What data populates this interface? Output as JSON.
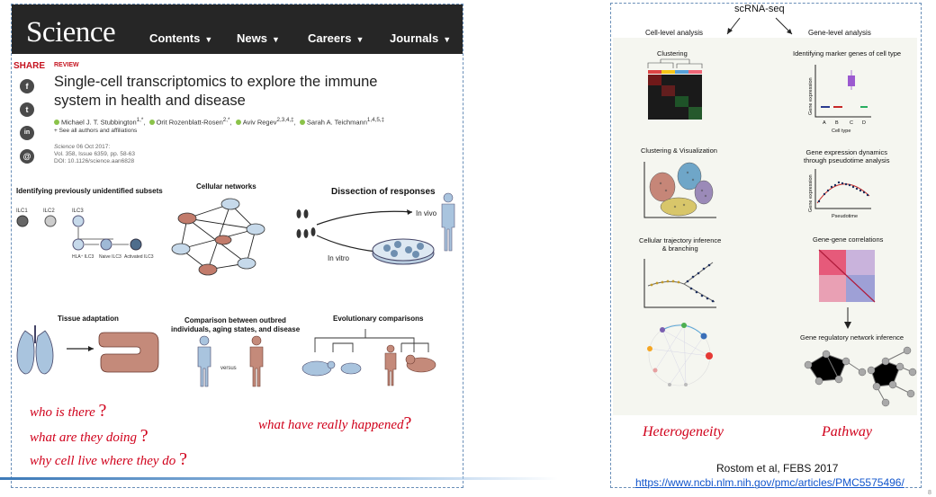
{
  "left": {
    "logo": "Science",
    "nav": [
      "Contents",
      "News",
      "Careers",
      "Journals"
    ],
    "share": "SHARE",
    "social": [
      "f",
      "t",
      "in",
      "@"
    ],
    "review": "REVIEW",
    "title": "Single-cell transcriptomics to explore the immune system in health and disease",
    "authors": [
      "Michael J. T. Stubbington",
      "Orit Rozenblatt-Rosen",
      "Aviv Regev",
      "Sarah A. Teichmann"
    ],
    "author_sups": [
      "1,*",
      "2,*",
      "2,3,4,‡",
      "1,4,5,‡"
    ],
    "see_all": "+ See all authors and affiliations",
    "meta_journal": "Science",
    "meta_date": " 06 Oct 2017:",
    "meta_vol": "Vol. 358, Issue 6359, pp. 58-63",
    "meta_doi": "DOI: 10.1126/science.aan6828",
    "panels": {
      "p1": "Identifying previously unidentified subsets",
      "p2": "Cellular networks",
      "p3": "Dissection of responses",
      "p4": "Tissue adaptation",
      "p5a": "Comparison between outbred",
      "p5b": "individuals, aging states, and disease",
      "p6": "Evolutionary comparisons"
    },
    "ilc": [
      "ILC1",
      "ILC2",
      "ILC3"
    ],
    "ilc_sub": [
      "HLA⁺ ILC3",
      "Naive ILC3",
      "Activated ILC3"
    ],
    "in_vivo": "In vivo",
    "in_vitro": "In vitro",
    "versus": "versus",
    "questions": [
      "who is there",
      "what are they doing",
      "why cell live where they do",
      "what have really happened"
    ],
    "qmark": "?"
  },
  "right": {
    "top_label": "scRNA-seq",
    "cell_level": "Cell-level analysis",
    "gene_level": "Gene-level analysis",
    "clustering": "Clustering",
    "clust_vis": "Clustering & Visualization",
    "trajectory_1": "Cellular trajectory inference",
    "trajectory_2": "& branching",
    "marker": "Identifying marker genes of cell type",
    "box_xlabel": "Cell type",
    "box_ylabel": "Gene expression",
    "box_ticks": [
      "A",
      "B",
      "C",
      "D"
    ],
    "dyn_1": "Gene expression dynamics",
    "dyn_2": "through pseudotime analysis",
    "dyn_xlabel": "Pseudotime",
    "dyn_ylabel": "Gene expression",
    "corr": "Gene-gene correlations",
    "grn": "Gene regulatory network inference",
    "heterogeneity": "Heterogeneity",
    "pathway": "Pathway",
    "citation": "Rostom et al, FEBS 2017",
    "link": "https://www.ncbi.nlm.nih.gov/pmc/articles/PMC5575496/"
  },
  "page_number": "8",
  "colors": {
    "accent_red": "#d0011b",
    "header_dark": "#262626",
    "link_blue": "#1155cc"
  }
}
